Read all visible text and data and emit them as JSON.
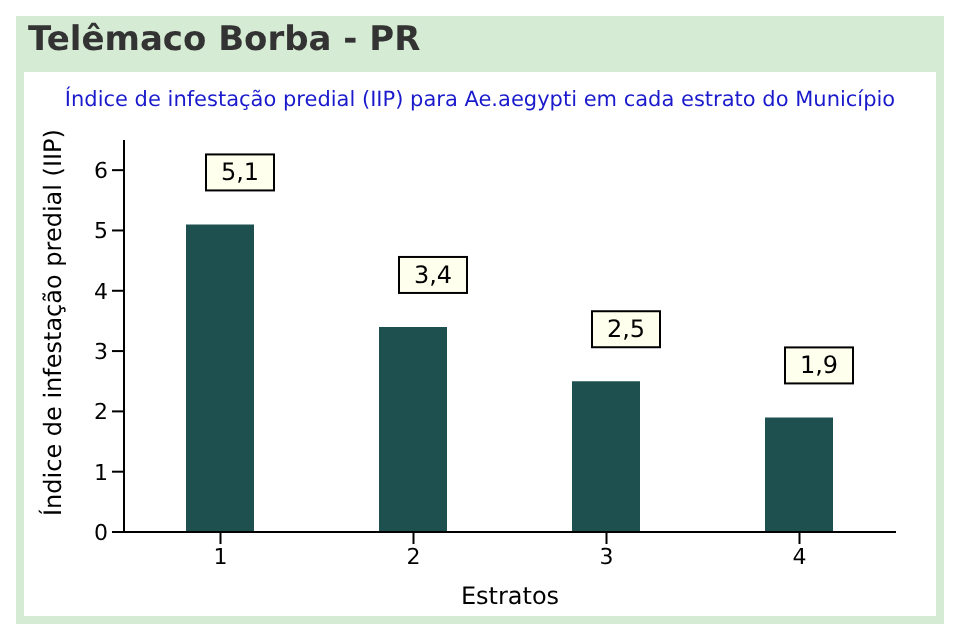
{
  "chart_data": {
    "type": "bar",
    "title": "Telêmaco Borba - PR",
    "subtitle": "Índice de infestação predial (IIP) para Ae.aegypti em cada estrato do Município",
    "xlabel": "Estratos",
    "ylabel": "Índice de infestação predial (IIP)",
    "categories": [
      "1",
      "2",
      "3",
      "4"
    ],
    "values": [
      5.1,
      3.4,
      2.5,
      1.9
    ],
    "value_labels": [
      "5,1",
      "3,4",
      "2,5",
      "1,9"
    ],
    "color": "#1f5050",
    "ylim": [
      0,
      6.5
    ],
    "yticks": [
      0,
      1,
      2,
      3,
      4,
      5,
      6
    ],
    "grid": false,
    "legend": false
  }
}
